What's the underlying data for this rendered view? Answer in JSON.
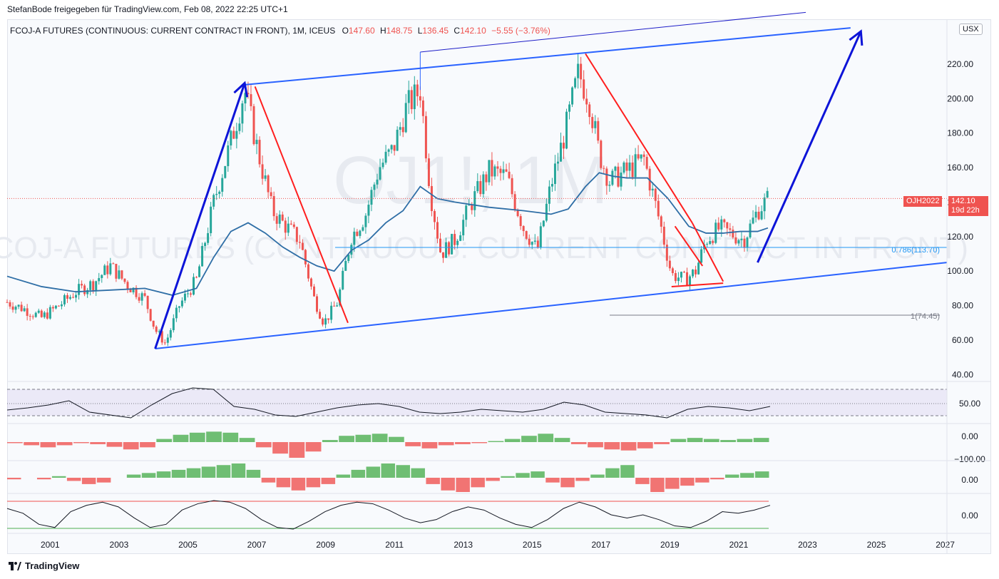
{
  "header": {
    "publisher": "StefanBode freigegeben für TradingView.com, Feb 08, 2022 22:25 UTC+1"
  },
  "legend": {
    "symbol": "FCOJ-A FUTURES (CONTINUOUS: CURRENT CONTRACT IN FRONT), 1M, ICEUS",
    "o_label": "O",
    "o": "147.60",
    "h_label": "H",
    "h": "148.75",
    "l_label": "L",
    "l": "136.45",
    "c_label": "C",
    "c": "142.10",
    "change": "−5.55 (−3.76%)"
  },
  "currency_button": "USX",
  "watermark": {
    "ticker": "OJ1!, 1M",
    "name": "FCOJ-A FUTURES (CONTINUOUS: CURRENT CONTRACT IN FRONT)"
  },
  "price_badge": {
    "symbol": "OJH2022",
    "price": "142.10",
    "countdown": "19d 22h"
  },
  "fib": {
    "level_786": "0.786(113.70)",
    "level_1": "1(74.45)"
  },
  "footer": {
    "brand": "TradingView"
  },
  "colors": {
    "up": "#26a69a",
    "down": "#ef5350",
    "trend_blue": "#2962ff",
    "arrow_blue": "#0d14d8",
    "ma": "#2e6ea6",
    "fib_blue": "#2196f3"
  },
  "chart_data": [
    {
      "type": "candlestick",
      "title": "FCOJ-A FUTURES (CONTINUOUS: CURRENT CONTRACT IN FRONT), 1M, ICEUS",
      "x_ticks": [
        "2001",
        "2003",
        "2005",
        "2007",
        "2009",
        "2011",
        "2013",
        "2015",
        "2017",
        "2019",
        "2021",
        "2023",
        "2025",
        "2027"
      ],
      "y_ticks": [
        "40.00",
        "60.00",
        "80.00",
        "100.00",
        "120.00",
        "140.00",
        "160.00",
        "180.00",
        "200.00",
        "220.00"
      ],
      "y_range": [
        36,
        246
      ],
      "x_range": [
        2000.0,
        2027.3
      ],
      "closes": {
        "x": [
          2000.0,
          2000.5,
          2001.0,
          2001.5,
          2002.0,
          2002.5,
          2003.0,
          2003.5,
          2004.0,
          2004.3,
          2004.6,
          2005.0,
          2005.5,
          2006.0,
          2006.5,
          2006.9,
          2007.3,
          2007.7,
          2008.0,
          2008.5,
          2008.9,
          2009.2,
          2009.6,
          2010.0,
          2010.4,
          2010.8,
          2011.2,
          2011.6,
          2012.0,
          2012.3,
          2012.6,
          2013.0,
          2013.5,
          2014.0,
          2014.5,
          2015.0,
          2015.4,
          2015.8,
          2016.2,
          2016.6,
          2016.9,
          2017.2,
          2017.5,
          2018.0,
          2018.5,
          2019.0,
          2019.3,
          2019.7,
          2020.0,
          2020.3,
          2020.7,
          2021.0,
          2021.4,
          2021.8,
          2022.1
        ],
        "y": [
          82,
          78,
          73,
          80,
          88,
          93,
          103,
          92,
          84,
          66,
          58,
          80,
          95,
          140,
          175,
          205,
          168,
          135,
          128,
          118,
          85,
          70,
          82,
          120,
          132,
          160,
          170,
          195,
          205,
          145,
          110,
          118,
          140,
          158,
          155,
          125,
          112,
          150,
          180,
          215,
          200,
          168,
          152,
          158,
          165,
          125,
          98,
          95,
          100,
          118,
          125,
          122,
          118,
          135,
          142
        ]
      },
      "ma": {
        "x": [
          2000.0,
          2001.0,
          2002.0,
          2003.0,
          2004.0,
          2004.8,
          2005.5,
          2006.0,
          2006.5,
          2007.0,
          2007.5,
          2008.0,
          2008.5,
          2009.0,
          2009.5,
          2010.0,
          2010.5,
          2011.0,
          2011.5,
          2012.0,
          2012.5,
          2013.0,
          2014.0,
          2015.0,
          2015.8,
          2016.3,
          2016.8,
          2017.2,
          2017.6,
          2018.0,
          2018.6,
          2019.2,
          2019.8,
          2020.3,
          2020.8,
          2021.3,
          2021.8,
          2022.1
        ],
        "y": [
          97,
          91,
          88,
          89,
          90,
          86,
          90,
          108,
          123,
          128,
          122,
          114,
          108,
          103,
          100,
          112,
          118,
          128,
          135,
          149,
          142,
          140,
          137,
          135,
          133,
          136,
          149,
          157,
          155,
          154,
          154,
          142,
          126,
          122,
          122,
          123,
          123,
          125
        ]
      },
      "annotations": {
        "fib_786": 113.7,
        "fib_1": 74.45,
        "last_price": 142.1,
        "channel_lower": {
          "from": [
            2004.3,
            55
          ],
          "to": [
            2027.3,
            105
          ]
        },
        "channel_upper": {
          "from": [
            2006.9,
            208
          ],
          "to": [
            2024.5,
            241
          ]
        },
        "channel_top_thin": {
          "from": [
            2012.0,
            227
          ],
          "to": [
            2023.2,
            250
          ]
        },
        "arrows": [
          {
            "from": [
              2004.3,
              55
            ],
            "to": [
              2006.9,
              209
            ]
          },
          {
            "from": [
              2021.8,
              105
            ],
            "to": [
              2024.8,
              239
            ]
          }
        ],
        "red_lines": [
          {
            "from": [
              2007.2,
              207
            ],
            "to": [
              2009.9,
              70
            ]
          },
          {
            "from": [
              2016.8,
              226
            ],
            "to": [
              2019.9,
              128
            ]
          },
          {
            "from": [
              2019.9,
              128
            ],
            "to": [
              2020.8,
              94
            ]
          },
          {
            "from": [
              2019.4,
              126
            ],
            "to": [
              2020.2,
              103
            ]
          },
          {
            "from": [
              2019.3,
              91
            ],
            "to": [
              2020.8,
              93
            ]
          }
        ]
      }
    },
    {
      "type": "line",
      "title": "",
      "y_ticks": [
        "50.00"
      ],
      "series": [
        {
          "name": "",
          "values": [
            55,
            58,
            62,
            68,
            52,
            48,
            44,
            62,
            78,
            86,
            84,
            60,
            56,
            48,
            46,
            52,
            58,
            62,
            64,
            60,
            52,
            50,
            52,
            56,
            54,
            52,
            56,
            66,
            62,
            52,
            50,
            48,
            44,
            56,
            60,
            58,
            54,
            60
          ]
        }
      ]
    },
    {
      "type": "bar",
      "title": "",
      "y_ticks": [
        "0.00",
        "−100.00"
      ],
      "series": [
        {
          "name": "",
          "values": [
            -2,
            -6,
            -10,
            -6,
            -2,
            -4,
            -9,
            -14,
            -10,
            6,
            14,
            18,
            20,
            18,
            8,
            -10,
            -22,
            -30,
            -18,
            4,
            12,
            14,
            16,
            10,
            -8,
            -12,
            -6,
            -4,
            -2,
            2,
            6,
            12,
            16,
            8,
            -4,
            -10,
            -14,
            -16,
            -12,
            -4,
            6,
            8,
            6,
            4,
            6,
            8
          ]
        }
      ]
    },
    {
      "type": "bar",
      "title": "",
      "y_ticks": [
        "0.00"
      ],
      "series": [
        {
          "name": "",
          "values": [
            -1,
            0,
            -1,
            1,
            -2,
            -4,
            -3,
            0,
            2,
            3,
            4,
            5,
            6,
            7,
            8,
            9,
            5,
            -3,
            -6,
            -8,
            -6,
            -4,
            2,
            5,
            7,
            9,
            8,
            6,
            -4,
            -8,
            -9,
            -6,
            -2,
            1,
            3,
            4,
            -3,
            -6,
            -2,
            2,
            6,
            8,
            -4,
            -9,
            -7,
            -5,
            -3,
            -1,
            2,
            3,
            4
          ]
        }
      ]
    },
    {
      "type": "line",
      "title": "",
      "y_ticks": [
        "0.00"
      ],
      "series": [
        {
          "name": "",
          "values": [
            0.4,
            0.1,
            -0.6,
            -0.8,
            0.2,
            0.6,
            0.8,
            0.5,
            -0.2,
            -0.8,
            -0.6,
            0.3,
            0.7,
            0.9,
            0.8,
            0.4,
            -0.3,
            -0.8,
            -0.9,
            -0.4,
            0.2,
            0.6,
            0.8,
            0.7,
            0.3,
            -0.2,
            -0.5,
            -0.3,
            0.2,
            0.5,
            0.3,
            -0.2,
            -0.6,
            -0.8,
            -0.3,
            0.4,
            0.8,
            0.5,
            0.0,
            -0.2,
            0.0,
            -0.3,
            -0.7,
            -0.8,
            -0.4,
            0.2,
            0.1,
            0.3,
            0.6
          ]
        }
      ]
    }
  ]
}
